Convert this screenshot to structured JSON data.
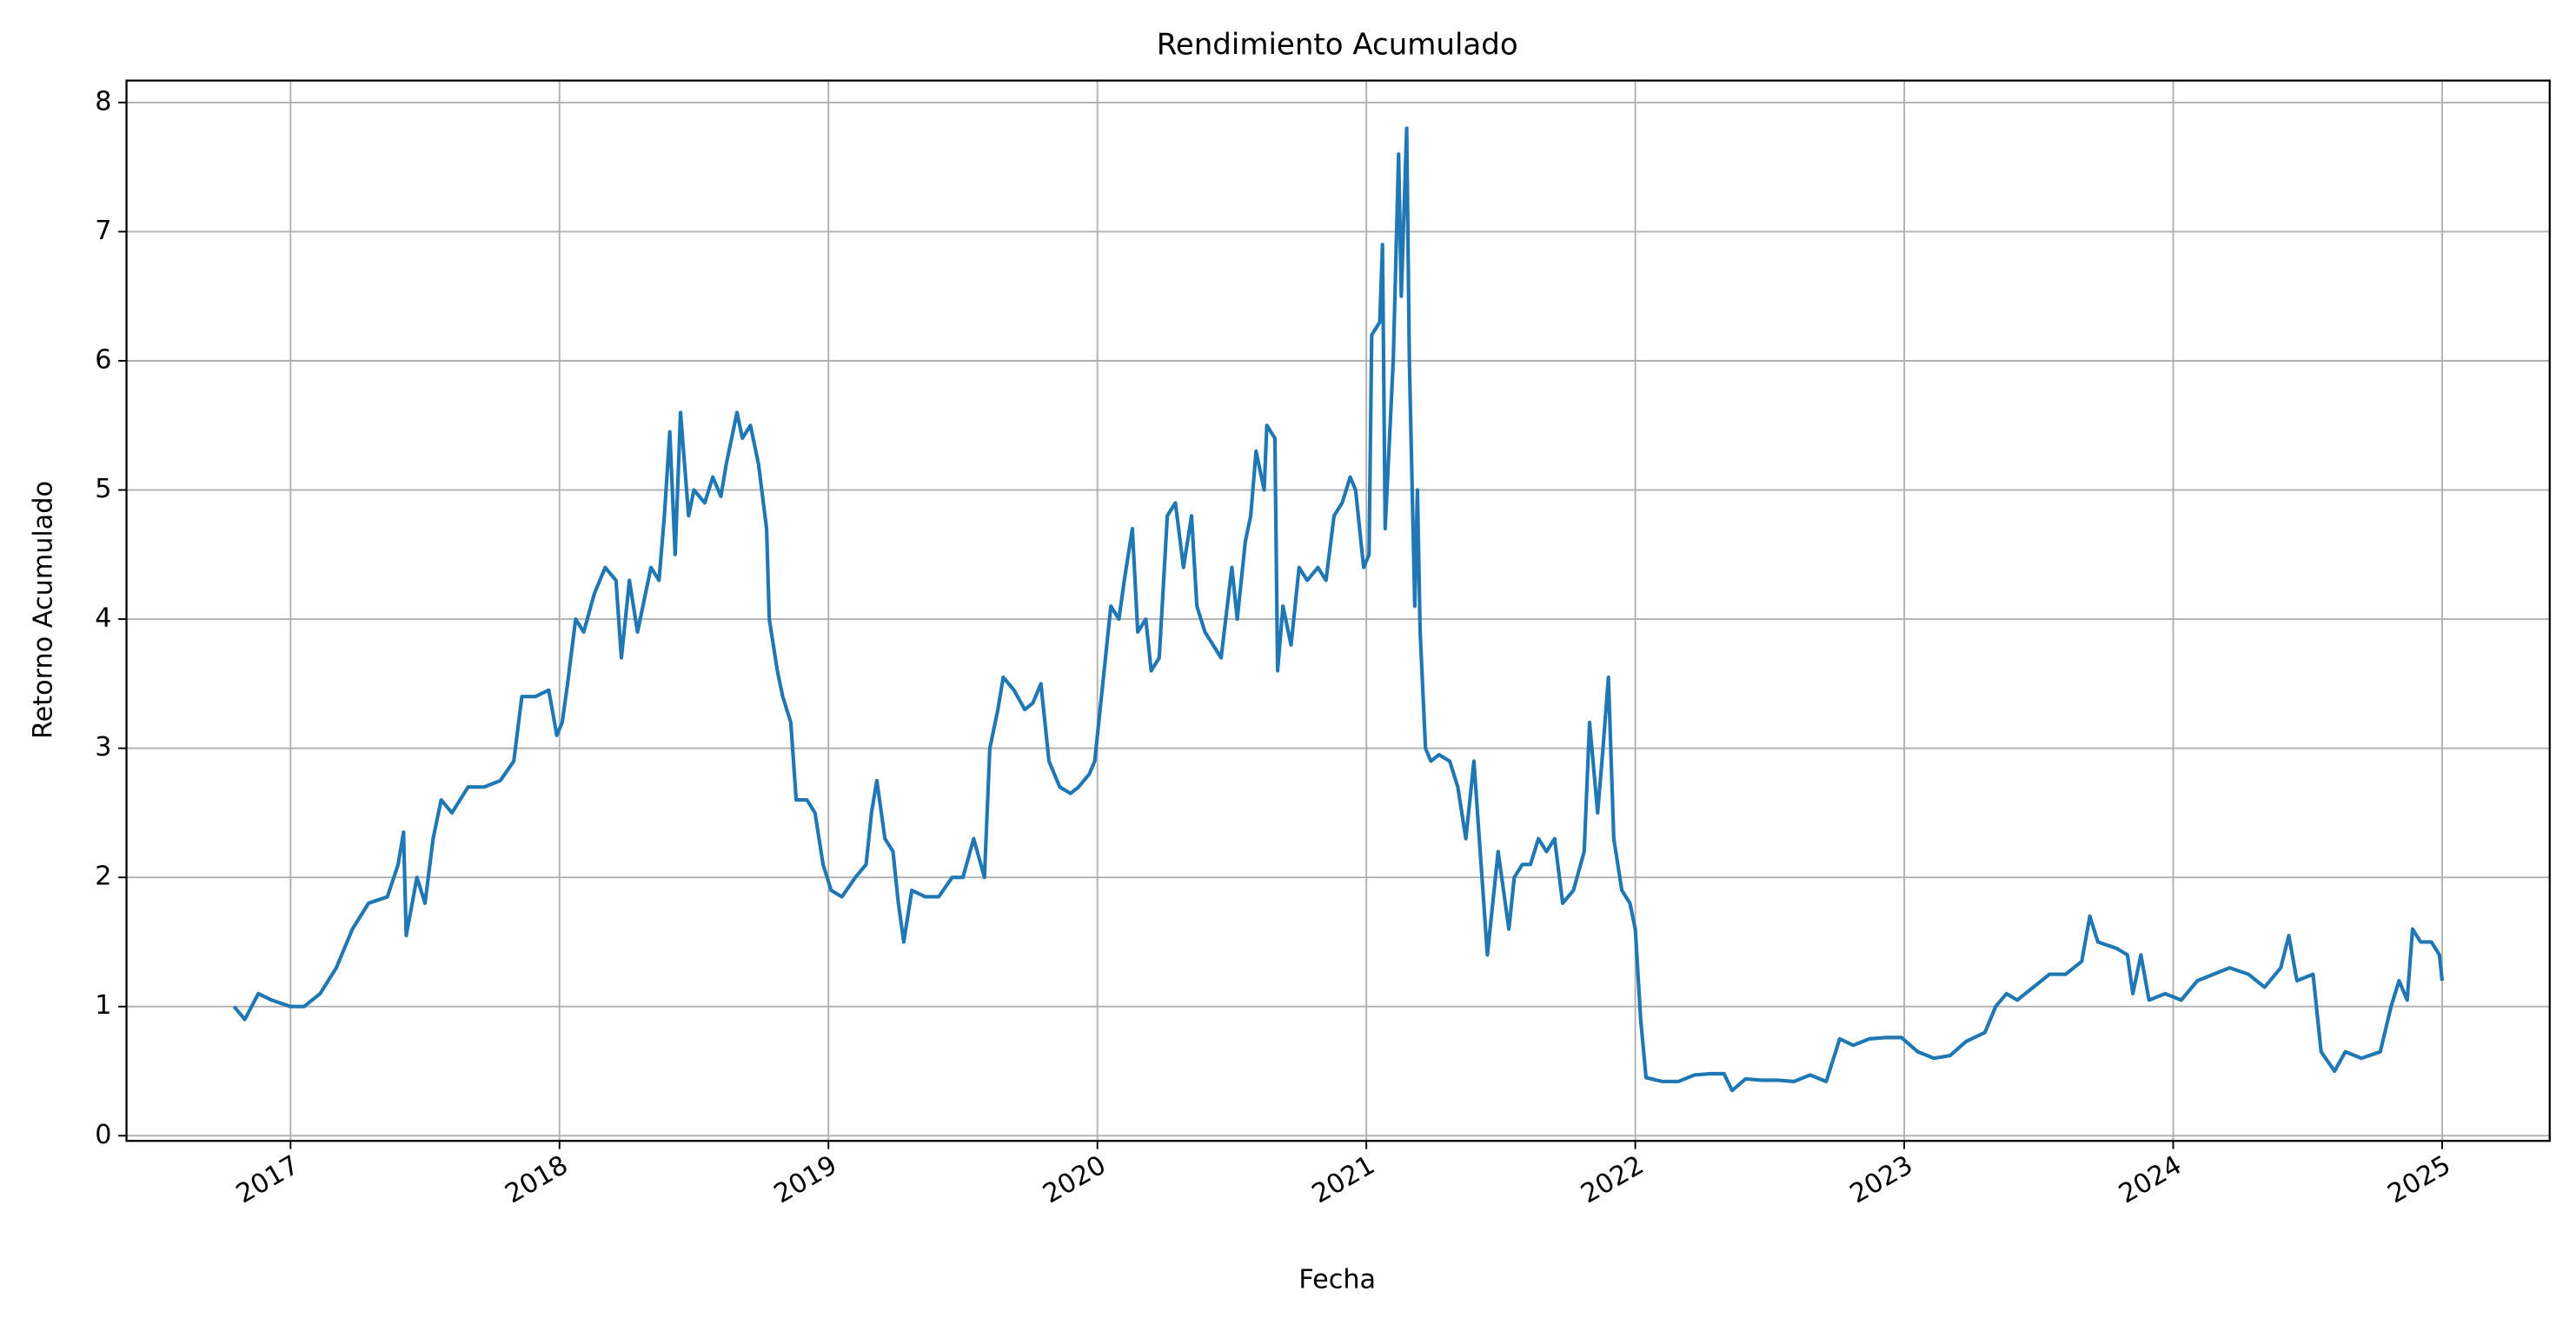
{
  "chart_data": {
    "type": "line",
    "title": "Rendimiento Acumulado",
    "x_label": "Fecha",
    "y_label": "Retorno Acumulado",
    "xlim": [
      2016.39,
      2025.4
    ],
    "ylim": [
      -0.04,
      8.17
    ],
    "xticks": [
      2017,
      2018,
      2019,
      2020,
      2021,
      2022,
      2023,
      2024,
      2025
    ],
    "yticks": [
      0,
      1,
      2,
      3,
      4,
      5,
      6,
      7,
      8
    ],
    "grid": true,
    "x": [
      2016.79,
      2016.83,
      2016.88,
      2016.93,
      2017.0,
      2017.05,
      2017.11,
      2017.17,
      2017.23,
      2017.29,
      2017.36,
      2017.4,
      2017.42,
      2017.43,
      2017.47,
      2017.5,
      2017.53,
      2017.56,
      2017.6,
      2017.66,
      2017.72,
      2017.78,
      2017.83,
      2017.86,
      2017.91,
      2017.96,
      2017.99,
      2018.01,
      2018.03,
      2018.06,
      2018.09,
      2018.13,
      2018.17,
      2018.21,
      2018.23,
      2018.26,
      2018.29,
      2018.34,
      2018.37,
      2018.39,
      2018.41,
      2018.43,
      2018.45,
      2018.48,
      2018.5,
      2018.54,
      2018.57,
      2018.6,
      2018.62,
      2018.66,
      2018.68,
      2018.71,
      2018.74,
      2018.77,
      2018.78,
      2018.81,
      2018.83,
      2018.86,
      2018.88,
      2018.92,
      2018.95,
      2018.98,
      2019.01,
      2019.05,
      2019.1,
      2019.14,
      2019.16,
      2019.18,
      2019.21,
      2019.24,
      2019.26,
      2019.28,
      2019.31,
      2019.36,
      2019.41,
      2019.46,
      2019.5,
      2019.54,
      2019.58,
      2019.6,
      2019.63,
      2019.65,
      2019.69,
      2019.73,
      2019.76,
      2019.79,
      2019.82,
      2019.86,
      2019.9,
      2019.93,
      2019.97,
      2019.99,
      2020.02,
      2020.05,
      2020.08,
      2020.1,
      2020.13,
      2020.15,
      2020.18,
      2020.2,
      2020.23,
      2020.26,
      2020.29,
      2020.32,
      2020.35,
      2020.37,
      2020.4,
      2020.43,
      2020.46,
      2020.5,
      2020.52,
      2020.55,
      2020.57,
      2020.59,
      2020.62,
      2020.63,
      2020.66,
      2020.67,
      2020.69,
      2020.72,
      2020.75,
      2020.78,
      2020.82,
      2020.85,
      2020.88,
      2020.91,
      2020.94,
      2020.96,
      2020.99,
      2021.01,
      2021.02,
      2021.05,
      2021.06,
      2021.07,
      2021.1,
      2021.11,
      2021.12,
      2021.13,
      2021.15,
      2021.16,
      2021.18,
      2021.19,
      2021.2,
      2021.22,
      2021.24,
      2021.27,
      2021.31,
      2021.34,
      2021.37,
      2021.4,
      2021.43,
      2021.45,
      2021.49,
      2021.53,
      2021.55,
      2021.58,
      2021.61,
      2021.64,
      2021.67,
      2021.7,
      2021.73,
      2021.77,
      2021.81,
      2021.83,
      2021.86,
      2021.88,
      2021.9,
      2021.92,
      2021.95,
      2021.98,
      2022.0,
      2022.02,
      2022.04,
      2022.1,
      2022.16,
      2022.22,
      2022.28,
      2022.33,
      2022.36,
      2022.41,
      2022.47,
      2022.53,
      2022.59,
      2022.65,
      2022.71,
      2022.76,
      2022.81,
      2022.87,
      2022.93,
      2022.99,
      2023.05,
      2023.11,
      2023.17,
      2023.23,
      2023.3,
      2023.34,
      2023.38,
      2023.42,
      2023.48,
      2023.54,
      2023.6,
      2023.66,
      2023.69,
      2023.72,
      2023.79,
      2023.83,
      2023.85,
      2023.88,
      2023.91,
      2023.97,
      2024.03,
      2024.09,
      2024.15,
      2024.21,
      2024.28,
      2024.34,
      2024.4,
      2024.43,
      2024.46,
      2024.52,
      2024.55,
      2024.6,
      2024.64,
      2024.7,
      2024.77,
      2024.81,
      2024.84,
      2024.87,
      2024.89,
      2024.92,
      2024.96,
      2024.99,
      2025.0
    ],
    "series": [
      {
        "color": "#1f77b4",
        "values": [
          1.0,
          0.9,
          1.1,
          1.05,
          1.0,
          1.0,
          1.1,
          1.3,
          1.6,
          1.8,
          1.85,
          2.1,
          2.35,
          1.55,
          2.0,
          1.8,
          2.3,
          2.6,
          2.5,
          2.7,
          2.7,
          2.75,
          2.9,
          3.4,
          3.4,
          3.45,
          3.1,
          3.2,
          3.5,
          4.0,
          3.9,
          4.2,
          4.4,
          4.3,
          3.7,
          4.3,
          3.9,
          4.4,
          4.3,
          4.8,
          5.45,
          4.5,
          5.6,
          4.8,
          5.0,
          4.9,
          5.1,
          4.95,
          5.2,
          5.6,
          5.4,
          5.5,
          5.2,
          4.7,
          4.0,
          3.6,
          3.4,
          3.2,
          2.6,
          2.6,
          2.5,
          2.1,
          1.9,
          1.85,
          2.0,
          2.1,
          2.5,
          2.75,
          2.3,
          2.2,
          1.8,
          1.5,
          1.9,
          1.85,
          1.85,
          2.0,
          2.0,
          2.3,
          2.0,
          3.0,
          3.3,
          3.55,
          3.45,
          3.3,
          3.35,
          3.5,
          2.9,
          2.7,
          2.65,
          2.7,
          2.8,
          2.9,
          3.5,
          4.1,
          4.0,
          4.3,
          4.7,
          3.9,
          4.0,
          3.6,
          3.7,
          4.8,
          4.9,
          4.4,
          4.8,
          4.1,
          3.9,
          3.8,
          3.7,
          4.4,
          4.0,
          4.6,
          4.8,
          5.3,
          5.0,
          5.5,
          5.4,
          3.6,
          4.1,
          3.8,
          4.4,
          4.3,
          4.4,
          4.3,
          4.8,
          4.9,
          5.1,
          5.0,
          4.4,
          4.5,
          6.2,
          6.3,
          6.9,
          4.7,
          6.0,
          6.8,
          7.6,
          6.5,
          7.8,
          6.0,
          4.1,
          5.0,
          3.9,
          3.0,
          2.9,
          2.95,
          2.9,
          2.7,
          2.3,
          2.9,
          2.0,
          1.4,
          2.2,
          1.6,
          2.0,
          2.1,
          2.1,
          2.3,
          2.2,
          2.3,
          1.8,
          1.9,
          2.2,
          3.2,
          2.5,
          3.0,
          3.55,
          2.3,
          1.9,
          1.8,
          1.6,
          0.9,
          0.45,
          0.42,
          0.42,
          0.47,
          0.48,
          0.48,
          0.35,
          0.44,
          0.43,
          0.43,
          0.42,
          0.47,
          0.42,
          0.75,
          0.7,
          0.75,
          0.76,
          0.76,
          0.65,
          0.6,
          0.62,
          0.73,
          0.8,
          1.0,
          1.1,
          1.05,
          1.15,
          1.25,
          1.25,
          1.35,
          1.7,
          1.5,
          1.45,
          1.4,
          1.1,
          1.4,
          1.05,
          1.1,
          1.05,
          1.2,
          1.25,
          1.3,
          1.25,
          1.15,
          1.3,
          1.55,
          1.2,
          1.25,
          0.65,
          0.5,
          0.65,
          0.6,
          0.65,
          1.0,
          1.2,
          1.05,
          1.6,
          1.5,
          1.5,
          1.4,
          1.2
        ]
      }
    ]
  }
}
